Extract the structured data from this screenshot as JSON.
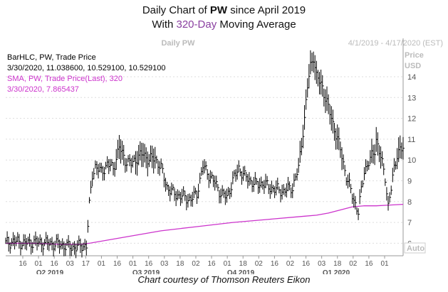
{
  "header": {
    "line1_prefix": "Daily Chart of ",
    "ticker": "PW",
    "line1_suffix": " since April 2019",
    "line2_prefix": "With ",
    "ma_label": "320-Day",
    "line2_suffix": " Moving Average"
  },
  "caption": "Chart courtesy of Thomson Reuters Eikon",
  "colors": {
    "price": "#000000",
    "sma": "#cc33cc",
    "grid": "#dddddd",
    "axis_text": "#555555",
    "panel_title": "#bbbbbb",
    "title_purple": "#8a3fa0"
  },
  "chart_data": {
    "type": "ohlc",
    "panel_title": "Daily PW",
    "date_range": "4/1/2019 - 4/17/2020 (EST)",
    "y_axis_label_1": "Price",
    "y_axis_label_2": "USD",
    "y_ticks": [
      6,
      7,
      8,
      9,
      10,
      11,
      12,
      13,
      14
    ],
    "ylim": [
      5.4,
      15.5
    ],
    "auto_label": "Auto",
    "legend": [
      {
        "text": "BarHLC, PW, Trade Price",
        "color": "#000000"
      },
      {
        "text": "3/30/2020, 11.038600, 10.529100, 10.529100",
        "color": "#000000"
      },
      {
        "text": "SMA, PW, Trade Price(Last),  320",
        "color": "#cc33cc"
      },
      {
        "text": "3/30/2020, 7.865437",
        "color": "#cc33cc"
      }
    ],
    "x_ticks": [
      "16",
      "01",
      "16",
      "03",
      "17",
      "01",
      "16",
      "01",
      "16",
      "03",
      "18",
      "02",
      "16",
      "01",
      "18",
      "02",
      "16",
      "02",
      "16",
      "03",
      "18",
      "02",
      "16",
      "01"
    ],
    "x_group_labels": [
      "Q2 2019",
      "Q3 2019",
      "Q4 2019",
      "Q1 2020"
    ],
    "series_price": {
      "name": "PW Trade Price (daily close)",
      "x": [
        0,
        6,
        12,
        20,
        28,
        36,
        44,
        50,
        54,
        56,
        58,
        60,
        64,
        68,
        72,
        76,
        80,
        84,
        88,
        92,
        96,
        100,
        104,
        108,
        112,
        116,
        120,
        124,
        128,
        132,
        136,
        140,
        144,
        148,
        152,
        156,
        160,
        164,
        168,
        172,
        176,
        180,
        186,
        192,
        196,
        200,
        202,
        204,
        206,
        208,
        212,
        216,
        220,
        224,
        228,
        232,
        236,
        240,
        244,
        247,
        248,
        250,
        252,
        254,
        256,
        258,
        260,
        262,
        264,
        266
      ],
      "values": [
        6.0,
        6.1,
        6.0,
        6.05,
        6.0,
        5.95,
        5.8,
        5.85,
        5.9,
        7.8,
        9.3,
        9.7,
        9.4,
        9.8,
        9.6,
        10.6,
        10.0,
        9.8,
        10.1,
        10.3,
        10.0,
        10.1,
        9.6,
        8.7,
        8.4,
        8.3,
        8.2,
        8.1,
        8.4,
        9.7,
        9.3,
        8.9,
        8.4,
        8.2,
        9.0,
        9.6,
        9.2,
        9.0,
        8.8,
        8.9,
        8.7,
        8.6,
        8.5,
        8.7,
        9.6,
        12.0,
        13.5,
        14.5,
        15.0,
        14.0,
        13.5,
        12.5,
        11.5,
        10.5,
        9.2,
        8.3,
        7.5,
        9.5,
        10.0,
        10.5,
        11.0,
        10.4,
        9.8,
        9.2,
        7.8,
        8.6,
        9.6,
        10.3,
        10.5,
        10.5
      ]
    },
    "series_sma": {
      "name": "SMA 320",
      "x": [
        0,
        20,
        36,
        50,
        56,
        80,
        104,
        128,
        152,
        176,
        200,
        208,
        216,
        224,
        232,
        240,
        248,
        256,
        266
      ],
      "values": [
        6.0,
        6.0,
        5.95,
        5.95,
        6.0,
        6.3,
        6.6,
        6.8,
        7.0,
        7.15,
        7.3,
        7.35,
        7.45,
        7.6,
        7.75,
        7.8,
        7.8,
        7.83,
        7.87
      ]
    }
  }
}
